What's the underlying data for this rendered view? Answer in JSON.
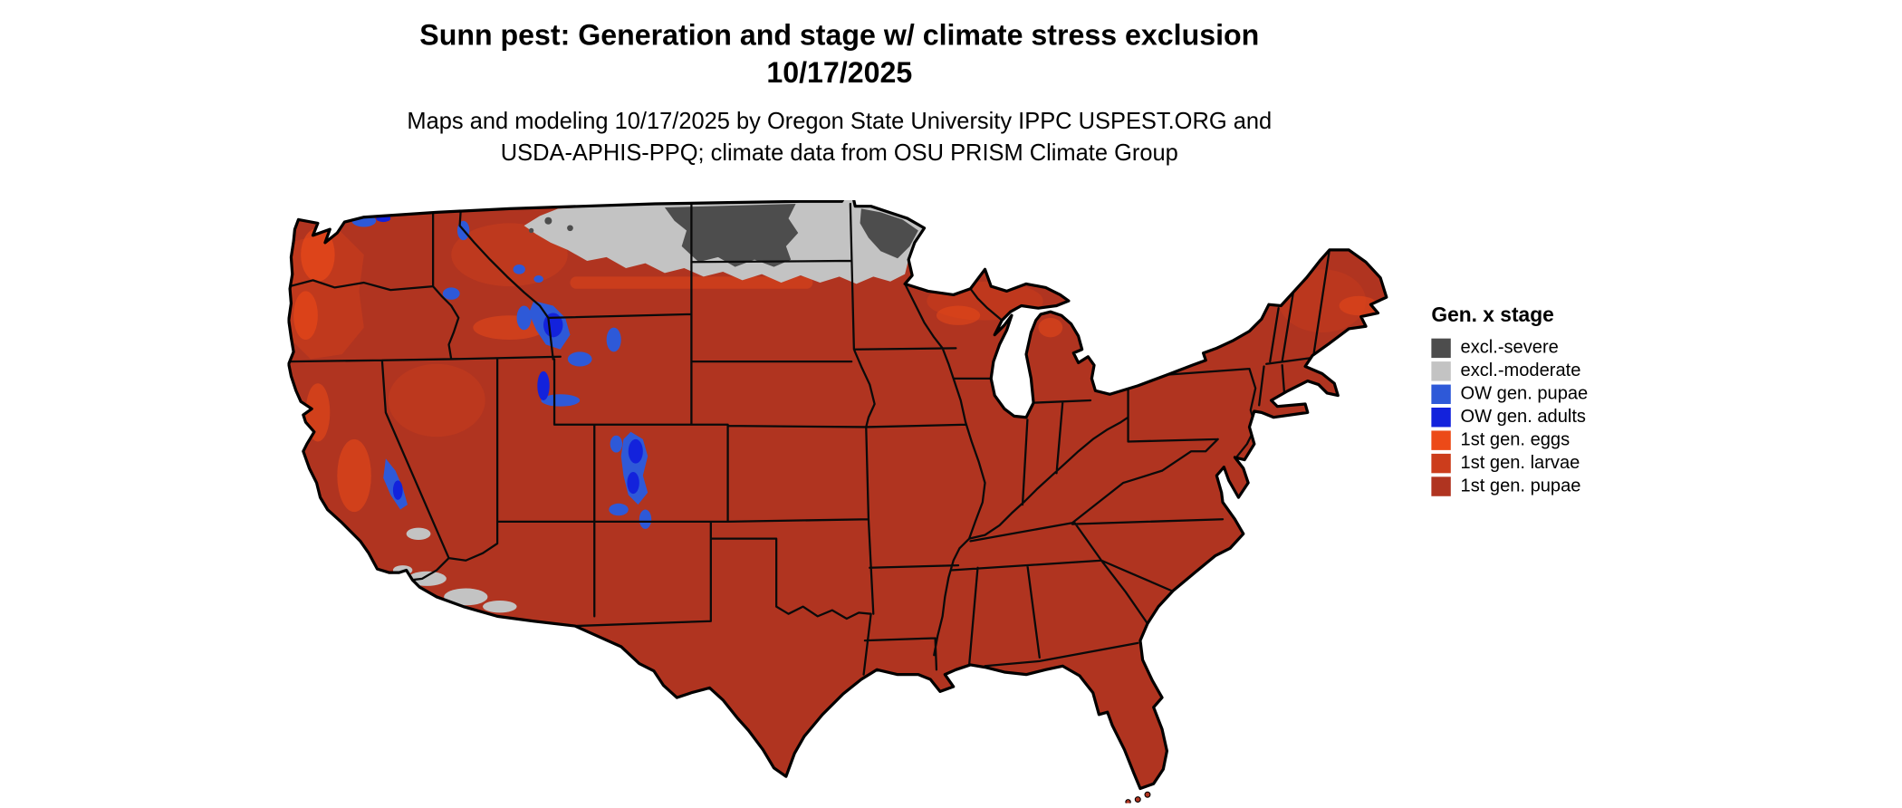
{
  "title": {
    "line1": "Sunn pest: Generation and stage w/ climate stress exclusion",
    "line2": "10/17/2025"
  },
  "subtitle": {
    "line1": "Maps and modeling 10/17/2025 by Oregon State University IPPC USPEST.ORG and",
    "line2": "USDA-APHIS-PPQ; climate data from OSU PRISM Climate Group"
  },
  "legend": {
    "title": "Gen. x stage",
    "items": [
      {
        "label": "excl.-severe",
        "color": "#4D4D4D"
      },
      {
        "label": "excl.-moderate",
        "color": "#C3C3C3"
      },
      {
        "label": "OW gen. pupae",
        "color": "#2E59D8"
      },
      {
        "label": "OW gen. adults",
        "color": "#1322DC"
      },
      {
        "label": "1st gen. eggs",
        "color": "#EC4A18"
      },
      {
        "label": "1st gen. larvae",
        "color": "#CC3D1C"
      },
      {
        "label": "1st gen. pupae",
        "color": "#B03420"
      }
    ]
  },
  "map": {
    "region": "Contiguous United States",
    "background_color": "#FFFFFF"
  }
}
